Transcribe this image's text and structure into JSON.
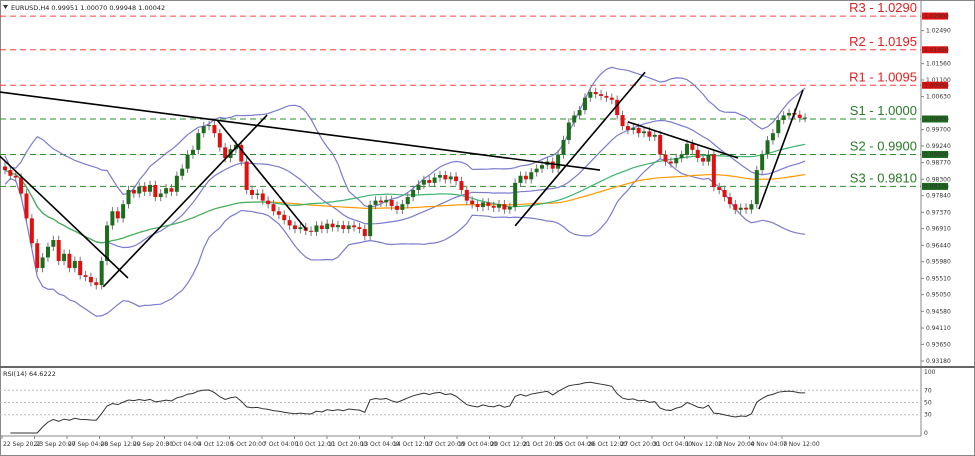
{
  "header": {
    "symbol_line": "EURUSD,H4  0.99951 1.00070 0.99948 1.00042"
  },
  "rsi_label": "RSI(14) 64.6222",
  "colors": {
    "bull": "#1e6b1e",
    "bear": "#e01010",
    "bollinger": "#7b7bd0",
    "ma_green": "#3cb371",
    "ma_orange": "#ff9900",
    "resistance": "#ff4040",
    "support": "#2f8f2f",
    "trendline": "#000000"
  },
  "chart_data": {
    "type": "candlestick",
    "title": "EURUSD,H4",
    "ylim": [
      0.9304,
      1.0324
    ],
    "price_ticks": [
      "1.02490",
      "1.01560",
      "1.01100",
      "1.00630",
      "0.99700",
      "0.99240",
      "0.98770",
      "0.98300",
      "0.97840",
      "0.97370",
      "0.96910",
      "0.96440",
      "0.95980",
      "0.95510",
      "0.95050",
      "0.94580",
      "0.94110",
      "0.93650",
      "0.93180"
    ],
    "time_labels": [
      "22 Sep 2022",
      "23 Sep 20:00",
      "27 Sep 04:00",
      "28 Sep 12:00",
      "29 Sep 20:00",
      "3 Oct 04:00",
      "4 Oct 12:00",
      "5 Oct 20:00",
      "7 Oct 04:00",
      "10 Oct 12:00",
      "11 Oct 20:00",
      "13 Oct 04:00",
      "14 Oct 12:00",
      "17 Oct 20:00",
      "19 Oct 04:00",
      "20 Oct 12:00",
      "21 Oct 20:00",
      "25 Oct 04:00",
      "26 Oct 12:00",
      "27 Oct 20:00",
      "31 Oct 04:00",
      "1 Nov 12:00",
      "2 Nov 20:00",
      "4 Nov 04:00",
      "7 Nov 12:00"
    ],
    "closes": [
      0.9856,
      0.984,
      0.9835,
      0.979,
      0.972,
      0.965,
      0.958,
      0.961,
      0.964,
      0.9659,
      0.96,
      0.962,
      0.958,
      0.96,
      0.956,
      0.9555,
      0.954,
      0.9532,
      0.96,
      0.97,
      0.974,
      0.972,
      0.976,
      0.98,
      0.979,
      0.981,
      0.9795,
      0.9814,
      0.978,
      0.979,
      0.9805,
      0.9795,
      0.984,
      0.986,
      0.99,
      0.9913,
      0.996,
      0.998,
      0.9983,
      0.996,
      0.992,
      0.989,
      0.9915,
      0.9927,
      0.988,
      0.98,
      0.9786,
      0.979,
      0.977,
      0.976,
      0.974,
      0.973,
      0.9715,
      0.97,
      0.969,
      0.9695,
      0.9685,
      0.9682,
      0.97,
      0.969,
      0.9705,
      0.9695,
      0.9701,
      0.969,
      0.97,
      0.9695,
      0.969,
      0.967,
      0.9758,
      0.977,
      0.9765,
      0.9772,
      0.9755,
      0.9744,
      0.976,
      0.978,
      0.98,
      0.9815,
      0.9828,
      0.982,
      0.9835,
      0.9842,
      0.983,
      0.9838,
      0.9825,
      0.98,
      0.977,
      0.976,
      0.9752,
      0.9765,
      0.9755,
      0.975,
      0.976,
      0.9745,
      0.9752,
      0.982,
      0.984,
      0.983,
      0.985,
      0.986,
      0.987,
      0.988,
      0.986,
      0.99,
      0.9941,
      0.999,
      1.001,
      1.0025,
      1.006,
      1.0076,
      1.007,
      1.0065,
      1.006,
      1.0054,
      1.0011,
      0.998,
      0.9969,
      0.9975,
      0.996,
      0.9965,
      0.995,
      0.9955,
      0.99,
      0.988,
      0.9875,
      0.989,
      0.9899,
      0.993,
      0.9913,
      0.989,
      0.988,
      0.99,
      0.9808,
      0.98,
      0.978,
      0.976,
      0.9744,
      0.975,
      0.9745,
      0.976,
      0.9856,
      0.99,
      0.994,
      0.996,
      0.9997,
      1.001,
      1.0017,
      1.0012,
      1.0003,
      1.0004
    ],
    "levels": [
      {
        "label": "R3 - 1.0290",
        "tag": "1.02900",
        "price": 1.029,
        "kind": "resistance"
      },
      {
        "label": "R2 - 1.0195",
        "tag": "1.01950",
        "price": 1.0195,
        "kind": "resistance"
      },
      {
        "label": "R1 - 1.0095",
        "tag": "1.00950",
        "price": 1.0095,
        "kind": "resistance"
      },
      {
        "label": "S1 - 1.0000",
        "tag": "1.00000",
        "price": 1.0,
        "kind": "support"
      },
      {
        "label": "S2 - 0.9900",
        "tag": "0.99000",
        "price": 0.99,
        "kind": "support"
      },
      {
        "label": "S3 - 0.9810",
        "tag": "0.98100",
        "price": 0.981,
        "kind": "support"
      }
    ],
    "trendlines": [
      [
        [
          -1,
          1.0076
        ],
        [
          110.8,
          0.9856
        ]
      ],
      [
        [
          -1,
          0.9896
        ],
        [
          22.9,
          0.9552
        ]
      ],
      [
        [
          18.3,
          0.9527
        ],
        [
          48.8,
          1.0011
        ]
      ],
      [
        [
          39.5,
          0.9997
        ],
        [
          56.2,
          0.9687
        ]
      ],
      [
        [
          95,
          0.9699
        ],
        [
          119.2,
          1.0132
        ]
      ],
      [
        [
          116,
          0.9992
        ],
        [
          136.5,
          0.989
        ]
      ],
      [
        [
          140.4,
          0.9746
        ],
        [
          148.6,
          1.0082
        ]
      ]
    ],
    "indicators": {
      "bollinger_period": 20,
      "ma_green_period": 50,
      "ma_orange_period": 100,
      "rsi_period": 14
    },
    "rsi_ticks": [
      "100",
      "70",
      "50",
      "30",
      "0"
    ],
    "rsi_levels": [
      70,
      50,
      30
    ]
  }
}
